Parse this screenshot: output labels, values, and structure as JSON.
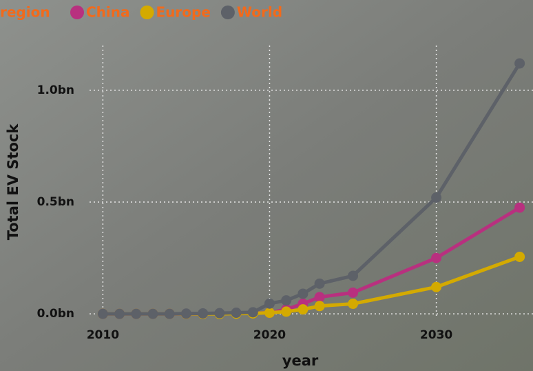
{
  "chart_data": {
    "type": "line",
    "legend_title": "region",
    "x_label": "year",
    "y_label": "Total EV Stock",
    "x": [
      2010,
      2011,
      2012,
      2013,
      2014,
      2015,
      2016,
      2017,
      2018,
      2019,
      2020,
      2021,
      2022,
      2023,
      2025,
      2030,
      2035
    ],
    "series": [
      {
        "name": "China",
        "color": "#b8307f",
        "values": [
          0,
          0,
          0,
          0,
          0,
          0,
          0,
          0.001,
          0.002,
          0.003,
          0.005,
          0.02,
          0.045,
          0.075,
          0.095,
          0.25,
          0.475
        ]
      },
      {
        "name": "Europe",
        "color": "#d4aa00",
        "values": [
          0,
          0,
          0,
          0,
          0,
          0,
          0,
          0,
          0.001,
          0.002,
          0.005,
          0.01,
          0.02,
          0.035,
          0.045,
          0.12,
          0.255
        ]
      },
      {
        "name": "World",
        "color": "#5d6168",
        "values": [
          0,
          0,
          0,
          0,
          0,
          0.001,
          0.002,
          0.003,
          0.005,
          0.007,
          0.046,
          0.06,
          0.09,
          0.135,
          0.17,
          0.52,
          1.12
        ]
      }
    ],
    "xlim": [
      2009.2,
      2035.8
    ],
    "ylim": [
      -0.015,
      1.2
    ],
    "xticks": [
      2010,
      2020,
      2030
    ],
    "yticks": [
      {
        "value": 0,
        "label": "0.0bn"
      },
      {
        "value": 0.5,
        "label": "0.5bn"
      },
      {
        "value": 1,
        "label": "1.0bn"
      }
    ],
    "grid": true
  }
}
